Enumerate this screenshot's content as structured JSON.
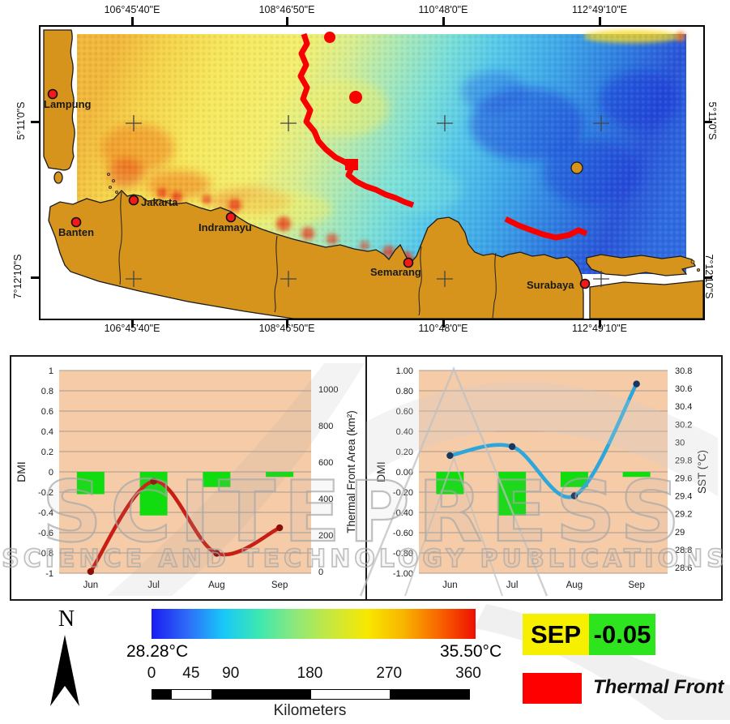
{
  "map": {
    "lon_labels": [
      "106°45'40\"E",
      "108°46'50\"E",
      "110°48'0\"E",
      "112°49'10\"E"
    ],
    "lat_labels": [
      "5°11'0\"S",
      "7°12'10\"S"
    ],
    "cities": [
      "Lampung",
      "Banten",
      "Jakarta",
      "Indramayu",
      "Semarang",
      "Surabaya"
    ],
    "land_color": "#d7941d",
    "front_color": "#f80000"
  },
  "chart_data": [
    {
      "type": "bar+line",
      "categories": [
        "Jun",
        "Jul",
        "Aug",
        "Sep"
      ],
      "series": [
        {
          "name": "DMI",
          "type": "bar",
          "axis": "left",
          "color": "#10dc10",
          "values": [
            -0.22,
            -0.43,
            -0.15,
            -0.05
          ]
        },
        {
          "name": "Thermal Front Area",
          "type": "line",
          "axis": "right",
          "color": "#c81e14",
          "marker_color": "#8c100a",
          "values": [
            0,
            495,
            100,
            240
          ]
        }
      ],
      "left_axis": {
        "label": "DMI",
        "min": -1,
        "max": 1,
        "ticks": [
          "1",
          "0.8",
          "0.6",
          "0.4",
          "0.2",
          "0",
          "-0.2",
          "-0.4",
          "-0.6",
          "-0.8",
          "-1"
        ]
      },
      "right_axis": {
        "label": "Thermal Front Area (km²)",
        "min": 0,
        "max": 1000,
        "ticks": [
          "1000",
          "800",
          "600",
          "400",
          "200",
          "0"
        ]
      },
      "plot_bg": "#f5cba8",
      "grid": true,
      "legend_position": "none"
    },
    {
      "type": "bar+line",
      "categories": [
        "Jun",
        "Jul",
        "Aug",
        "Sep"
      ],
      "series": [
        {
          "name": "DMI",
          "type": "bar",
          "axis": "left",
          "color": "#10dc10",
          "values": [
            -0.22,
            -0.43,
            -0.15,
            -0.05
          ]
        },
        {
          "name": "SST",
          "type": "line",
          "axis": "right",
          "color": "#2ba7db",
          "marker_color": "#17375e",
          "values": [
            29.85,
            29.95,
            29.4,
            30.65
          ]
        }
      ],
      "left_axis": {
        "label": "DMI",
        "min": -1,
        "max": 1,
        "ticks": [
          "1.00",
          "0.80",
          "0.60",
          "0.40",
          "0.20",
          "0.00",
          "-0.20",
          "-0.40",
          "-0.60",
          "-0.80",
          "-1.00"
        ]
      },
      "right_axis": {
        "label": "SST (°C)",
        "min": 28.6,
        "max": 30.8,
        "ticks": [
          "30.8",
          "30.6",
          "30.4",
          "30.2",
          "30",
          "29.8",
          "29.6",
          "29.4",
          "29.2",
          "29",
          "28.8",
          "28.6"
        ]
      },
      "plot_bg": "#f5cba8",
      "grid": true,
      "legend_position": "none"
    }
  ],
  "legend": {
    "north_label": "N",
    "colorbar": {
      "min_label": "28.28°C",
      "max_label": "35.50°C",
      "stops": [
        "#1b1bf0",
        "#2e6cf8",
        "#18c8f8",
        "#3ee8b0",
        "#8ee87a",
        "#c8e83c",
        "#f8e800",
        "#f8b400",
        "#f86400",
        "#ee1000"
      ]
    },
    "scalebar": {
      "ticks": [
        "0",
        "45",
        "90",
        "180",
        "270",
        "360"
      ],
      "unit": "Kilometers"
    },
    "dmi_badge": {
      "month": "SEP",
      "value": "-0.05",
      "month_bg": "#f7ef00",
      "value_bg": "#2ee41f"
    },
    "front": {
      "label": "Thermal Front",
      "color": "#ff0000"
    }
  },
  "watermark": {
    "line1": "SCITEPRESS",
    "line2": "SCIENCE AND TECHNOLOGY PUBLICATIONS"
  }
}
